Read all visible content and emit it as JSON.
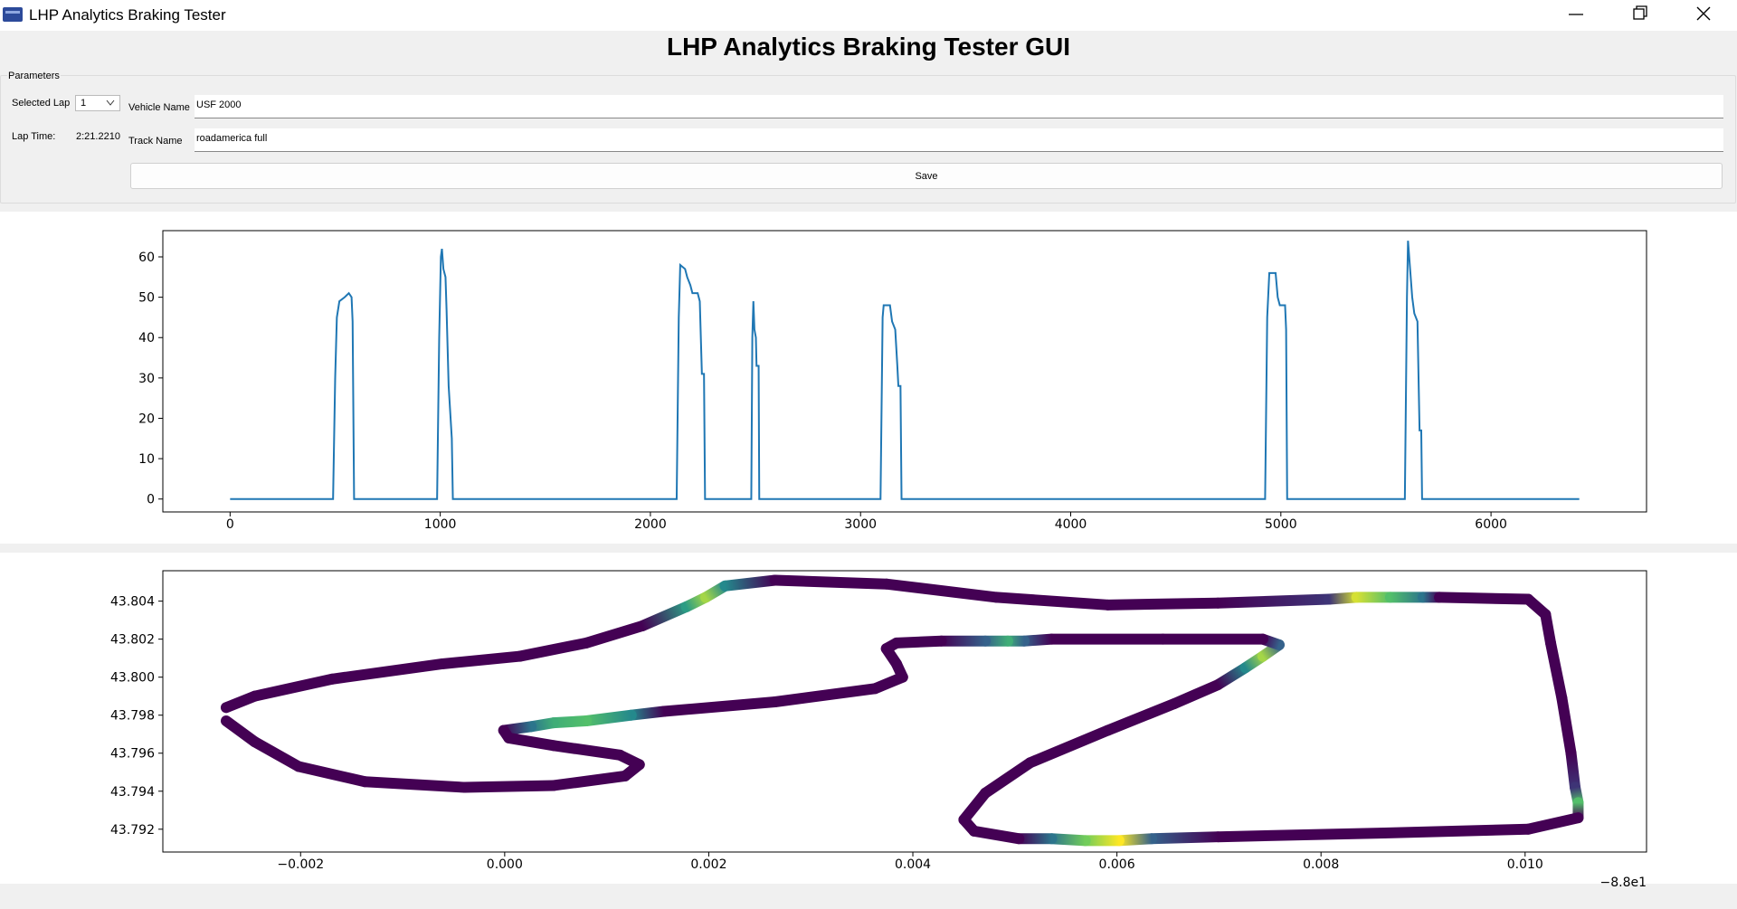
{
  "window": {
    "title": "LHP Analytics Braking Tester"
  },
  "header": {
    "title": "LHP Analytics Braking Tester GUI"
  },
  "parameters": {
    "title": "Parameters",
    "selected_lap_label": "Selected Lap",
    "selected_lap": "1",
    "lap_time_label": "Lap Time:",
    "lap_time": "2:21.2210",
    "vehicle_name_label": "Vehicle Name",
    "vehicle_name": "USF 2000",
    "track_name_label": "Track Name",
    "track_name": "roadamerica full",
    "save": "Save"
  },
  "chart_data": [
    {
      "type": "line",
      "x": [
        0,
        490,
        500,
        508,
        520,
        545,
        565,
        578,
        583,
        590,
        985,
        995,
        1003,
        1008,
        1015,
        1025,
        1030,
        1040,
        1055,
        1060,
        2125,
        2135,
        2142,
        2165,
        2175,
        2190,
        2200,
        2225,
        2235,
        2245,
        2255,
        2260,
        2480,
        2485,
        2490,
        2495,
        2502,
        2505,
        2515,
        2518,
        3095,
        3105,
        3110,
        3140,
        3150,
        3165,
        3175,
        3180,
        3190,
        3195,
        4925,
        4935,
        4945,
        4975,
        4985,
        4995,
        5020,
        5025,
        5030,
        5590,
        5600,
        5605,
        5615,
        5625,
        5635,
        5650,
        5660,
        5668,
        5672,
        6420
      ],
      "series": [
        {
          "color": "#1f77b4",
          "values": [
            0,
            0,
            30,
            45,
            49,
            50,
            51,
            50,
            44,
            0,
            0,
            40,
            60,
            62,
            57,
            55,
            47,
            28,
            15,
            0,
            0,
            45,
            58,
            57,
            55,
            53,
            51,
            51,
            49,
            31,
            31,
            0,
            0,
            40,
            49,
            42,
            40,
            33,
            33,
            0,
            0,
            45,
            48,
            48,
            44,
            42,
            33,
            28,
            28,
            0,
            0,
            45,
            56,
            56,
            50,
            48,
            48,
            42,
            0,
            0,
            50,
            64,
            57,
            50,
            46,
            44,
            17,
            17,
            0,
            0
          ]
        }
      ],
      "xlim": [
        -320,
        6740
      ],
      "ylim": [
        -3.2,
        66.5
      ],
      "xticks": [
        0,
        1000,
        2000,
        3000,
        4000,
        5000,
        6000
      ],
      "yticks": [
        0,
        10,
        20,
        30,
        40,
        50,
        60
      ]
    },
    {
      "type": "track",
      "colormap": "viridis",
      "x_offset_label": "−8.8e1",
      "x": [
        -0.00273,
        -0.00245,
        -0.00169,
        -0.00061,
        0.00015,
        0.0008,
        0.00135,
        0.00178,
        0.00197,
        0.00216,
        0.00265,
        0.00374,
        0.00482,
        0.00591,
        0.00699,
        0.00808,
        0.00835,
        0.00868,
        0.009,
        0.00916,
        0.01003,
        0.0102,
        0.01025,
        0.01036,
        0.01045,
        0.01049,
        0.01052,
        0.01052,
        0.01003,
        0.00862,
        0.00699,
        0.00634,
        0.00602,
        0.00569,
        0.00536,
        0.00504,
        0.0046,
        0.0045,
        0.00471,
        0.00515,
        0.00591,
        0.00656,
        0.00699,
        0.00726,
        0.00743,
        0.00759,
        0.00743,
        0.00645,
        0.00536,
        0.00509,
        0.00493,
        0.00471,
        0.00428,
        0.00384,
        0.00374,
        0.00384,
        0.0039,
        0.00363,
        0.00265,
        0.00156,
        0.00124,
        0.0008,
        0.00048,
        0.00026,
        -1e-05,
        4e-05,
        0.00048,
        0.00113,
        0.00132,
        0.00118,
        0.00048,
        -0.00039,
        -0.00137,
        -0.00202,
        -0.00245,
        -0.00273
      ],
      "series": [
        {
          "values": [
            43.7984,
            43.799,
            43.7999,
            43.8007,
            43.8011,
            43.8018,
            43.8027,
            43.8037,
            43.8042,
            43.8048,
            43.8051,
            43.8049,
            43.8042,
            43.8038,
            43.8039,
            43.8041,
            43.8042,
            43.8042,
            43.8042,
            43.8042,
            43.8041,
            43.8033,
            43.8018,
            43.7989,
            43.796,
            43.7942,
            43.7934,
            43.7926,
            43.792,
            43.7918,
            43.7916,
            43.7915,
            43.7914,
            43.7914,
            43.7915,
            43.7915,
            43.7919,
            43.7925,
            43.7939,
            43.7955,
            43.7972,
            43.7986,
            43.7996,
            43.8005,
            43.8011,
            43.8017,
            43.802,
            43.802,
            43.802,
            43.8019,
            43.8019,
            43.8019,
            43.8019,
            43.8018,
            43.8015,
            43.8007,
            43.8,
            43.7994,
            43.7987,
            43.7982,
            43.798,
            43.7977,
            43.7976,
            43.7974,
            43.7972,
            43.7968,
            43.7964,
            43.7959,
            43.7954,
            43.7948,
            43.7943,
            43.7942,
            43.7945,
            43.7953,
            43.7966,
            43.7977
          ],
          "color_values": [
            0,
            0,
            0,
            0,
            0,
            0,
            0,
            35,
            55,
            30,
            0,
            0,
            0,
            0,
            0,
            10,
            60,
            45,
            25,
            0,
            0,
            0,
            0,
            0,
            0,
            10,
            45,
            0,
            0,
            0,
            0,
            20,
            64,
            50,
            25,
            0,
            0,
            0,
            0,
            0,
            0,
            0,
            0,
            30,
            55,
            20,
            0,
            0,
            0,
            20,
            40,
            20,
            0,
            0,
            0,
            0,
            0,
            0,
            0,
            0,
            30,
            45,
            40,
            25,
            0,
            0,
            0,
            0,
            0,
            0,
            0,
            0,
            0,
            0,
            0,
            0
          ]
        }
      ],
      "xlim": [
        -0.00335,
        0.01119
      ],
      "ylim": [
        43.7908,
        43.8056
      ],
      "xticks": [
        {
          "value": -0.002,
          "label": "−0.002"
        },
        {
          "value": 0,
          "label": "0.000"
        },
        0.002,
        0.004,
        0.006,
        0.008,
        {
          "value": 0.01,
          "label": "0.010"
        }
      ],
      "yticks": [
        43.792,
        43.794,
        43.796,
        43.798,
        {
          "value": 43.8,
          "label": "43.800"
        },
        43.802,
        43.804
      ]
    }
  ]
}
